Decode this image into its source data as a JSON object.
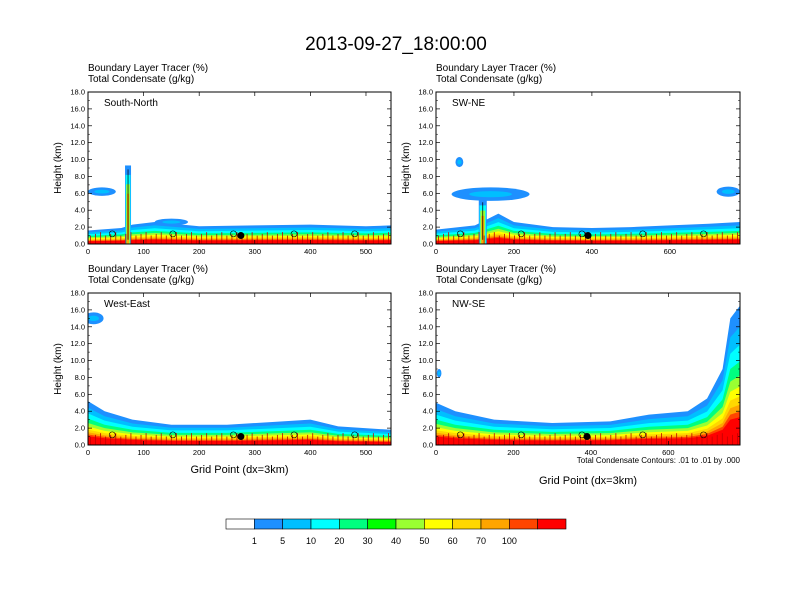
{
  "figure": {
    "title": "2013-09-27_18:00:00",
    "x_axis_label": "Grid Point (dx=3km)",
    "contour_note": "Total Condensate Contours: .01 to .01 by .000"
  },
  "chart_data": [
    {
      "type": "heatmap",
      "panel": "South-North",
      "line1": "Boundary Layer Tracer   (%)",
      "line2": "Total Condensate   (g/kg)",
      "ylabel": "Height (km)",
      "ylim": [
        0,
        18
      ],
      "yticks": [
        "0.0",
        "2.0",
        "4.0",
        "6.0",
        "8.0",
        "10.0",
        "12.0",
        "14.0",
        "16.0",
        "18.0"
      ],
      "xlim": [
        0,
        545
      ],
      "xticks": [
        0,
        100,
        200,
        300,
        400,
        500
      ],
      "xlabel": "",
      "marker_x": 275,
      "features": {
        "pbl": [
          [
            0,
            1.6
          ],
          [
            60,
            1.9
          ],
          [
            80,
            2.3
          ],
          [
            120,
            2.6
          ],
          [
            200,
            2.1
          ],
          [
            300,
            2.2
          ],
          [
            400,
            2.3
          ],
          [
            500,
            2.1
          ],
          [
            545,
            2.2
          ]
        ],
        "tower": {
          "x": 72,
          "width": 6,
          "top": 9.3
        },
        "clouds": [
          {
            "cx": 25,
            "cy": 6.2,
            "rx": 25,
            "ry": 0.5
          },
          {
            "cx": 150,
            "cy": 2.6,
            "rx": 30,
            "ry": 0.4
          }
        ]
      }
    },
    {
      "type": "heatmap",
      "panel": "SW-NE",
      "line1": "Boundary Layer Tracer   (%)",
      "line2": "Total Condensate   (g/kg)",
      "ylabel": "Height (km)",
      "ylim": [
        0,
        18
      ],
      "yticks": [
        "0.0",
        "2.0",
        "4.0",
        "6.0",
        "8.0",
        "10.0",
        "12.0",
        "14.0",
        "16.0",
        "18.0"
      ],
      "xlim": [
        0,
        780
      ],
      "xticks": [
        0,
        200,
        400,
        600
      ],
      "xlabel": "",
      "marker_x": 390,
      "features": {
        "pbl": [
          [
            0,
            1.7
          ],
          [
            100,
            2.2
          ],
          [
            160,
            3.6
          ],
          [
            200,
            2.6
          ],
          [
            300,
            2.0
          ],
          [
            400,
            1.9
          ],
          [
            500,
            2.0
          ],
          [
            600,
            2.2
          ],
          [
            700,
            2.4
          ],
          [
            780,
            2.6
          ]
        ],
        "tower": {
          "x": 120,
          "width": 8,
          "top": 5.2
        },
        "clouds": [
          {
            "cx": 60,
            "cy": 9.7,
            "rx": 10,
            "ry": 0.6
          },
          {
            "cx": 140,
            "cy": 5.9,
            "rx": 100,
            "ry": 0.8
          },
          {
            "cx": 750,
            "cy": 6.2,
            "rx": 30,
            "ry": 0.6
          }
        ]
      }
    },
    {
      "type": "heatmap",
      "panel": "West-East",
      "line1": "Boundary Layer Tracer   (%)",
      "line2": "Total Condensate   (g/kg)",
      "ylabel": "Height (km)",
      "ylim": [
        0,
        18
      ],
      "yticks": [
        "0.0",
        "2.0",
        "4.0",
        "6.0",
        "8.0",
        "10.0",
        "12.0",
        "14.0",
        "16.0",
        "18.0"
      ],
      "xlim": [
        0,
        545
      ],
      "xticks": [
        0,
        100,
        200,
        300,
        400,
        500
      ],
      "xlabel": "Grid Point (dx=3km)",
      "marker_x": 275,
      "features": {
        "pbl": [
          [
            0,
            5.2
          ],
          [
            30,
            4.0
          ],
          [
            80,
            3.0
          ],
          [
            150,
            2.4
          ],
          [
            250,
            2.4
          ],
          [
            350,
            2.8
          ],
          [
            400,
            3.0
          ],
          [
            450,
            2.2
          ],
          [
            545,
            1.8
          ]
        ],
        "tower": null,
        "clouds": [
          {
            "cx": 10,
            "cy": 15.0,
            "rx": 18,
            "ry": 0.7
          }
        ]
      }
    },
    {
      "type": "heatmap",
      "panel": "NW-SE",
      "line1": "Boundary Layer Tracer   (%)",
      "line2": "Total Condensate   (g/kg)",
      "ylabel": "Height (km)",
      "ylim": [
        0,
        18
      ],
      "yticks": [
        "0.0",
        "2.0",
        "4.0",
        "6.0",
        "8.0",
        "10.0",
        "12.0",
        "14.0",
        "16.0",
        "18.0"
      ],
      "xlim": [
        0,
        785
      ],
      "xticks": [
        0,
        200,
        400,
        600
      ],
      "xlabel": "Grid Point (dx=3km)",
      "marker_x": 390,
      "features": {
        "pbl": [
          [
            0,
            5.0
          ],
          [
            50,
            4.0
          ],
          [
            150,
            3.0
          ],
          [
            300,
            2.6
          ],
          [
            450,
            2.8
          ],
          [
            550,
            3.6
          ],
          [
            650,
            4.0
          ],
          [
            700,
            5.5
          ],
          [
            740,
            9.0
          ],
          [
            760,
            15.0
          ],
          [
            785,
            16.5
          ]
        ],
        "tower": null,
        "clouds": [
          {
            "cx": 8,
            "cy": 8.5,
            "rx": 6,
            "ry": 0.5
          }
        ]
      }
    }
  ],
  "colorbar": {
    "labels": [
      "1",
      "5",
      "10",
      "20",
      "30",
      "40",
      "50",
      "60",
      "70",
      "100"
    ],
    "colors": [
      "#ffffff",
      "#1e90ff",
      "#00bfff",
      "#00ffff",
      "#00ff7f",
      "#00ff00",
      "#9aff32",
      "#ffff00",
      "#ffd700",
      "#ffa500",
      "#ff4500",
      "#ff0000"
    ]
  }
}
